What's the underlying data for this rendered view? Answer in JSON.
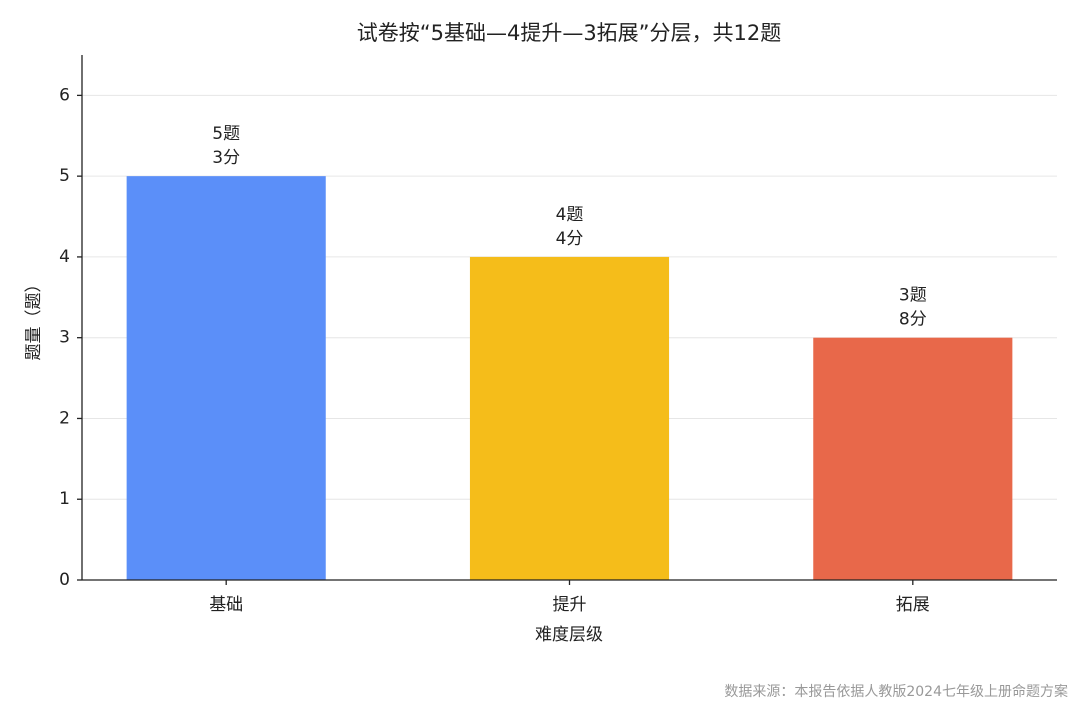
{
  "chart_data": {
    "type": "bar",
    "title": "试卷按“5基础—4提升—3拓展”分层，共12题",
    "x_label": "难度层级",
    "y_label": "题量（题）",
    "categories": [
      "基础",
      "提升",
      "拓展"
    ],
    "values": [
      5,
      4,
      3
    ],
    "value_labels": [
      "5题",
      "4题",
      "3题"
    ],
    "score_labels": [
      "3分",
      "4分",
      "8分"
    ],
    "colors": [
      "#5b8ff9",
      "#f5bd1a",
      "#e8684a"
    ],
    "ylim": [
      0,
      6.5
    ],
    "yticks": [
      0,
      1,
      2,
      3,
      4,
      5,
      6
    ],
    "grid": true,
    "source": "数据来源：本报告依据人教版2024七年级上册命题方案"
  }
}
